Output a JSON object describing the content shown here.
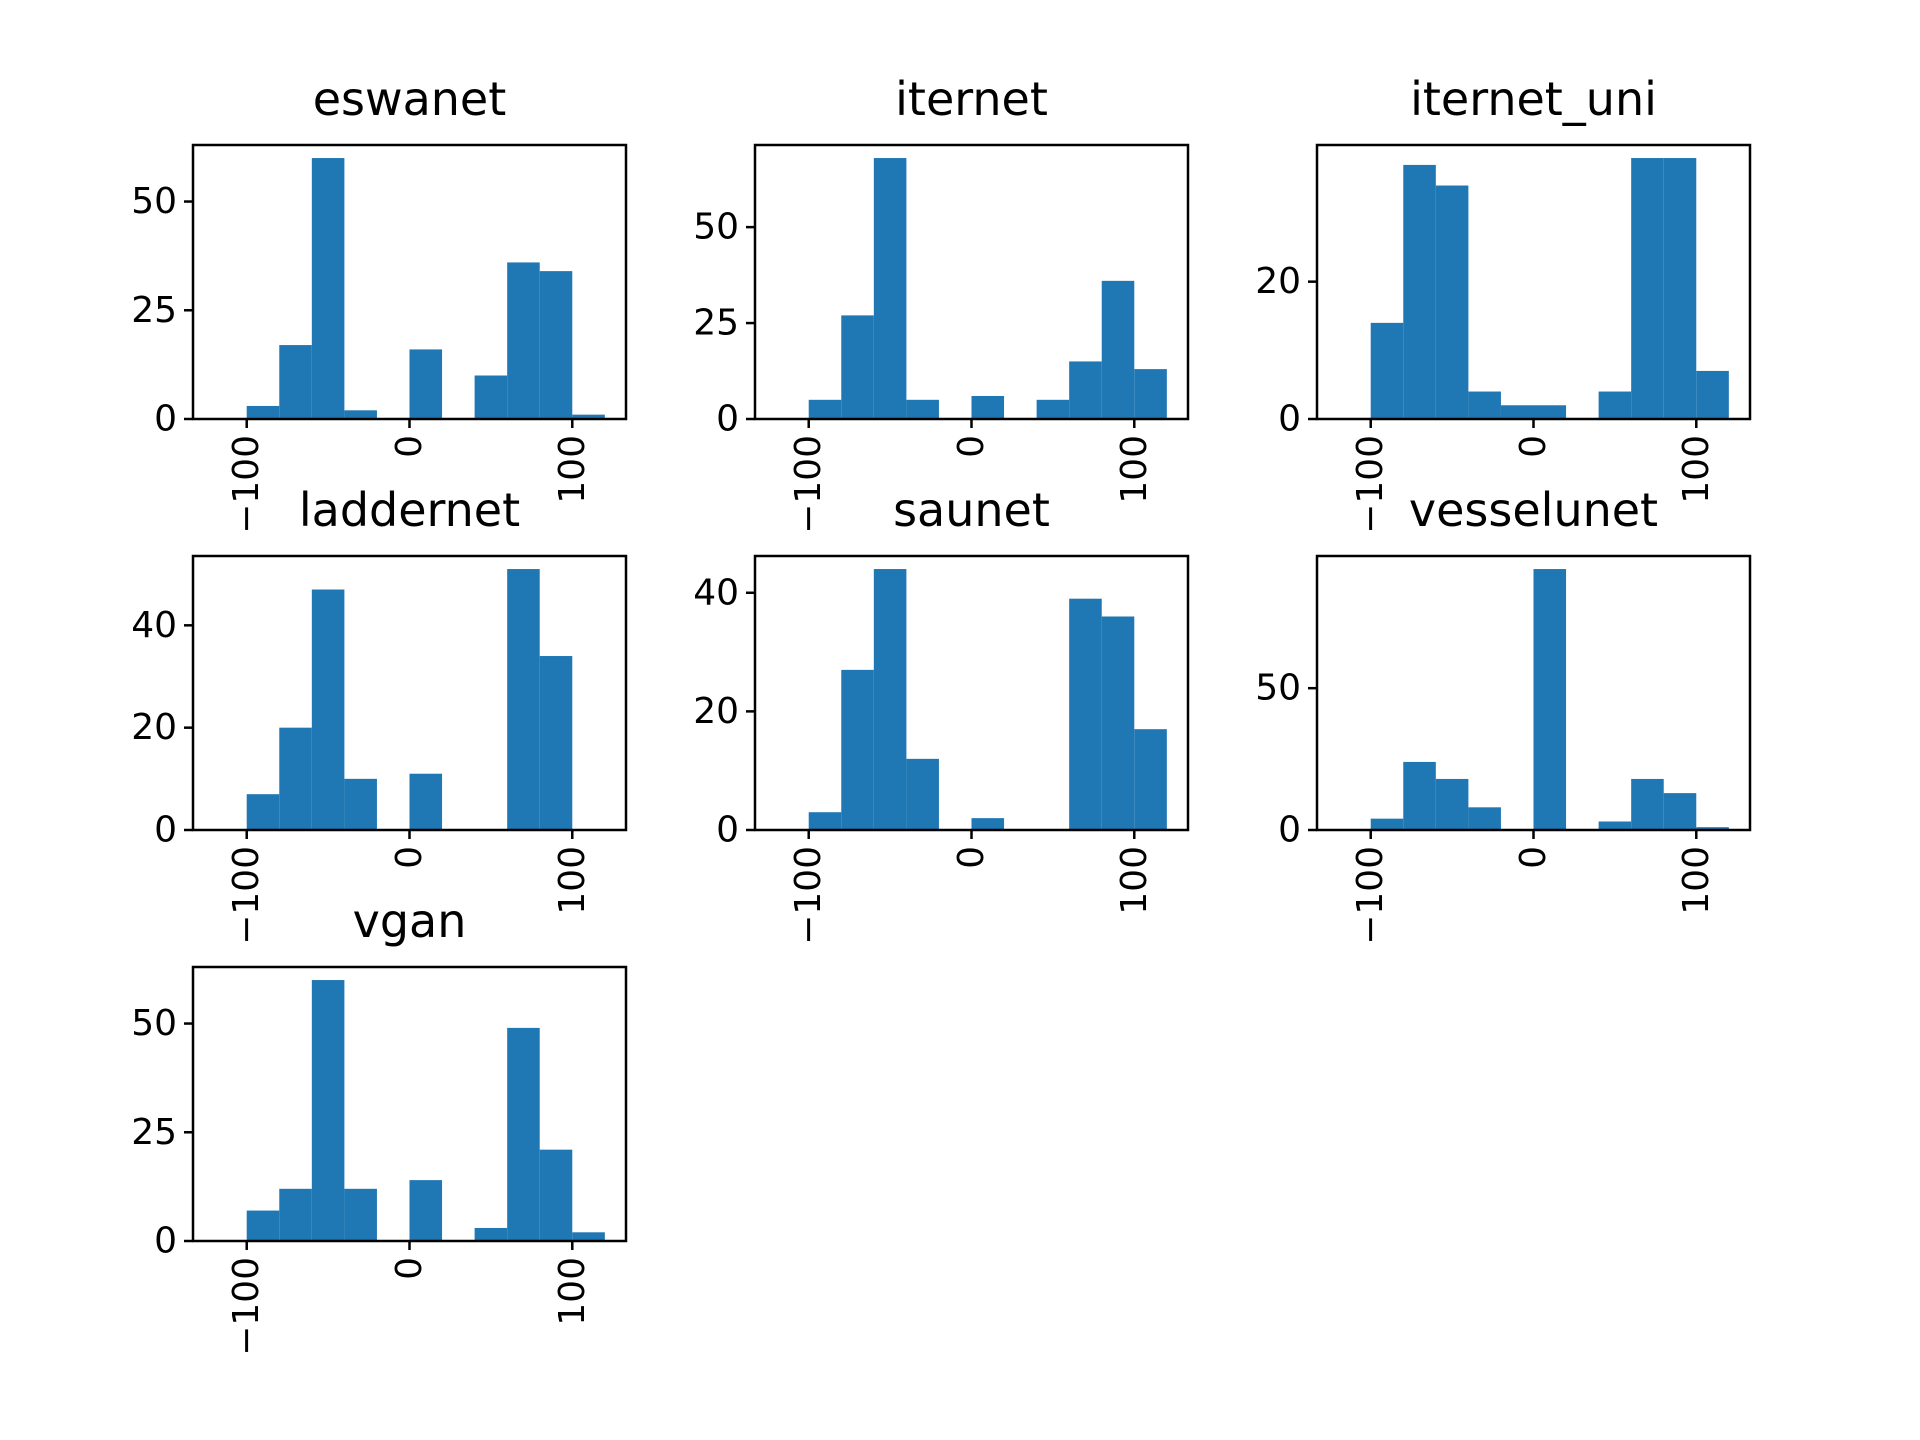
{
  "chart_data": [
    {
      "type": "bar",
      "title": "eswanet",
      "xlabel": "",
      "ylabel": "",
      "bin_edges": [
        -100,
        -80,
        -60,
        -40,
        -20,
        0,
        20,
        40,
        60,
        80,
        100,
        120
      ],
      "values": [
        3,
        17,
        60,
        2,
        0,
        16,
        0,
        10,
        36,
        34,
        1
      ],
      "xlim": [
        -133,
        133
      ],
      "ylim": [
        0,
        63
      ],
      "xticks": [
        -100,
        0,
        100
      ],
      "xtick_labels": [
        "−100",
        "0",
        "100"
      ],
      "yticks": [
        0,
        25,
        50
      ],
      "ytick_labels": [
        "0",
        "25",
        "50"
      ]
    },
    {
      "type": "bar",
      "title": "iternet",
      "xlabel": "",
      "ylabel": "",
      "bin_edges": [
        -100,
        -80,
        -60,
        -40,
        -20,
        0,
        20,
        40,
        60,
        80,
        100,
        120
      ],
      "values": [
        5,
        27,
        68,
        5,
        0,
        6,
        0,
        5,
        15,
        36,
        13
      ],
      "xlim": [
        -133,
        133
      ],
      "ylim": [
        0,
        71.4
      ],
      "xticks": [
        -100,
        0,
        100
      ],
      "xtick_labels": [
        "−100",
        "0",
        "100"
      ],
      "yticks": [
        0,
        25,
        50
      ],
      "ytick_labels": [
        "0",
        "25",
        "50"
      ]
    },
    {
      "type": "bar",
      "title": "iternet_uni",
      "xlabel": "",
      "ylabel": "",
      "bin_edges": [
        -100,
        -80,
        -60,
        -40,
        -20,
        0,
        20,
        40,
        60,
        80,
        100,
        120
      ],
      "values": [
        14,
        37,
        34,
        4,
        2,
        2,
        0,
        4,
        38,
        38,
        7
      ],
      "xlim": [
        -133,
        133
      ],
      "ylim": [
        0,
        39.9
      ],
      "xticks": [
        -100,
        0,
        100
      ],
      "xtick_labels": [
        "−100",
        "0",
        "100"
      ],
      "yticks": [
        0,
        20
      ],
      "ytick_labels": [
        "0",
        "20"
      ]
    },
    {
      "type": "bar",
      "title": "laddernet",
      "xlabel": "",
      "ylabel": "",
      "bin_edges": [
        -100,
        -80,
        -60,
        -40,
        -20,
        0,
        20,
        40,
        60,
        80,
        100,
        120
      ],
      "values": [
        7,
        20,
        47,
        10,
        0,
        11,
        0,
        0,
        51,
        34,
        0
      ],
      "xlim": [
        -133,
        133
      ],
      "ylim": [
        0,
        53.55
      ],
      "xticks": [
        -100,
        0,
        100
      ],
      "xtick_labels": [
        "−100",
        "0",
        "100"
      ],
      "yticks": [
        0,
        20,
        40
      ],
      "ytick_labels": [
        "0",
        "20",
        "40"
      ]
    },
    {
      "type": "bar",
      "title": "saunet",
      "xlabel": "",
      "ylabel": "",
      "bin_edges": [
        -100,
        -80,
        -60,
        -40,
        -20,
        0,
        20,
        40,
        60,
        80,
        100,
        120
      ],
      "values": [
        3,
        27,
        44,
        12,
        0,
        2,
        0,
        0,
        39,
        36,
        17
      ],
      "xlim": [
        -133,
        133
      ],
      "ylim": [
        0,
        46.2
      ],
      "xticks": [
        -100,
        0,
        100
      ],
      "xtick_labels": [
        "−100",
        "0",
        "100"
      ],
      "yticks": [
        0,
        20,
        40
      ],
      "ytick_labels": [
        "0",
        "20",
        "40"
      ]
    },
    {
      "type": "bar",
      "title": "vesselunet",
      "xlabel": "",
      "ylabel": "",
      "bin_edges": [
        -100,
        -80,
        -60,
        -40,
        -20,
        0,
        20,
        40,
        60,
        80,
        100,
        120
      ],
      "values": [
        4,
        24,
        18,
        8,
        0,
        92,
        0,
        3,
        18,
        13,
        1
      ],
      "xlim": [
        -133,
        133
      ],
      "ylim": [
        0,
        96.6
      ],
      "xticks": [
        -100,
        0,
        100
      ],
      "xtick_labels": [
        "−100",
        "0",
        "100"
      ],
      "yticks": [
        0,
        50
      ],
      "ytick_labels": [
        "0",
        "50"
      ]
    },
    {
      "type": "bar",
      "title": "vgan",
      "xlabel": "",
      "ylabel": "",
      "bin_edges": [
        -100,
        -80,
        -60,
        -40,
        -20,
        0,
        20,
        40,
        60,
        80,
        100,
        120
      ],
      "values": [
        7,
        12,
        60,
        12,
        0,
        14,
        0,
        3,
        49,
        21,
        2
      ],
      "xlim": [
        -133,
        133
      ],
      "ylim": [
        0,
        63
      ],
      "xticks": [
        -100,
        0,
        100
      ],
      "xtick_labels": [
        "−100",
        "0",
        "100"
      ],
      "yticks": [
        0,
        25,
        50
      ],
      "ytick_labels": [
        "0",
        "25",
        "50"
      ]
    }
  ],
  "style": {
    "bar_color": "#1f77b4",
    "background": "#ffffff",
    "axis_color": "#000000"
  }
}
